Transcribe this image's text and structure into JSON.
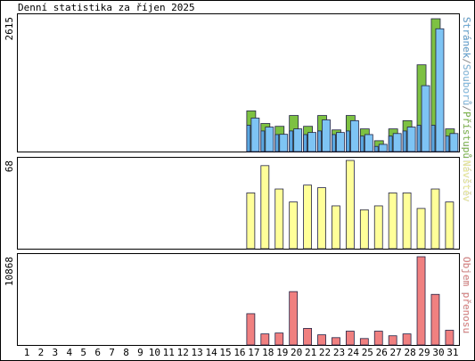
{
  "chart_data": {
    "type": "bar",
    "title": "Denní statistika za říjen 2025",
    "categories": [
      "1",
      "2",
      "3",
      "4",
      "5",
      "6",
      "7",
      "8",
      "9",
      "10",
      "11",
      "12",
      "13",
      "14",
      "15",
      "16",
      "17",
      "18",
      "19",
      "20",
      "21",
      "22",
      "23",
      "24",
      "25",
      "26",
      "27",
      "28",
      "29",
      "30",
      "31"
    ],
    "weekend": [
      3,
      4,
      10,
      11,
      17,
      18,
      24,
      25
    ],
    "weekend_color": "#66aa22",
    "separator": "/",
    "panels": [
      {
        "ylim": [
          0,
          2615
        ],
        "yticks": [
          2615
        ],
        "series": [
          {
            "name": "Přístupů",
            "color": "#7dc142",
            "values": [
              null,
              null,
              null,
              null,
              null,
              null,
              null,
              null,
              null,
              null,
              null,
              null,
              null,
              null,
              null,
              null,
              790,
              545,
              490,
              700,
              490,
              700,
              420,
              700,
              440,
              210,
              440,
              600,
              1685,
              2580,
              440
            ]
          },
          {
            "name": "Souborů",
            "color": "#7ec4f4",
            "values": [
              null,
              null,
              null,
              null,
              null,
              null,
              null,
              null,
              null,
              null,
              null,
              null,
              null,
              null,
              null,
              null,
              650,
              475,
              335,
              440,
              370,
              615,
              370,
              600,
              330,
              140,
              350,
              475,
              1280,
              2385,
              350
            ]
          },
          {
            "name": "Stránek",
            "color": "#5aa7e0",
            "values": [
              null,
              null,
              null,
              null,
              null,
              null,
              null,
              null,
              null,
              null,
              null,
              null,
              null,
              null,
              null,
              null,
              510,
              400,
              330,
              400,
              330,
              400,
              330,
              400,
              300,
              100,
              300,
              400,
              510,
              510,
              300
            ]
          }
        ]
      },
      {
        "ylim": [
          0,
          68
        ],
        "yticks": [
          68
        ],
        "series": [
          {
            "name": "Návštěv",
            "color": "#ffff99",
            "values": [
              null,
              null,
              null,
              null,
              null,
              null,
              null,
              null,
              null,
              null,
              null,
              null,
              null,
              null,
              null,
              null,
              43,
              64,
              46,
              36,
              49,
              47,
              33,
              68,
              30,
              33,
              43,
              43,
              31,
              46,
              36
            ]
          }
        ]
      },
      {
        "ylim": [
          0,
          10868
        ],
        "yticks": [
          10868
        ],
        "series": [
          {
            "name": "Objem přenosu",
            "color": "#f08080",
            "values": [
              null,
              null,
              null,
              null,
              null,
              null,
              null,
              null,
              null,
              null,
              null,
              null,
              null,
              null,
              null,
              null,
              3850,
              1360,
              1470,
              6570,
              2040,
              1250,
              900,
              1700,
              790,
              1700,
              1130,
              1360,
              10868,
              6230,
              1810
            ]
          }
        ]
      }
    ]
  }
}
